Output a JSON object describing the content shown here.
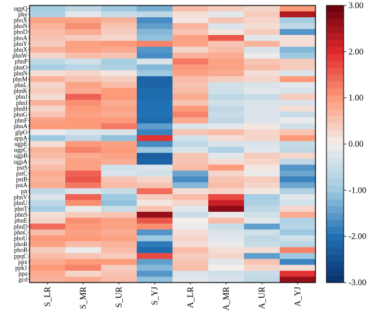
{
  "chart_data": {
    "type": "heatmap",
    "title": "",
    "xlabel": "",
    "ylabel": "",
    "columns": [
      "S_LR",
      "S_MR",
      "S_UR",
      "S_YJ",
      "A_LR",
      "A_MR",
      "A_UR",
      "A_YJ"
    ],
    "rows": [
      "ugpQ",
      "phy",
      "phoX",
      "phoN",
      "phoD",
      "phoA",
      "phnY",
      "phnX",
      "phnW",
      "phnP",
      "phnO",
      "phnN",
      "phnM",
      "phnL",
      "phnK",
      "phnJ",
      "phnI",
      "phnH",
      "phnG",
      "phnF",
      "phnA",
      "glpO",
      "appA",
      "ugpE",
      "ugpC",
      "ugpB",
      "ugpA",
      "pstS",
      "pstC",
      "pstB",
      "pstA",
      "pit",
      "phnV",
      "phnU",
      "phnT",
      "phnS",
      "phnE",
      "phnD",
      "phnC",
      "phoU",
      "phoR",
      "phoB",
      "ppqC",
      "ppx",
      "ppk1",
      "ppa",
      "gcd"
    ],
    "values": [
      [
        -0.9,
        -0.6,
        -1.0,
        -1.3,
        0.6,
        0.4,
        0.3,
        1.0
      ],
      [
        -0.8,
        -0.2,
        -0.5,
        -0.6,
        0.2,
        -0.2,
        0.4,
        2.4
      ],
      [
        0.9,
        0.9,
        0.7,
        -1.7,
        0.1,
        0.5,
        0.3,
        -0.9
      ],
      [
        0.7,
        1.1,
        0.5,
        -1.5,
        0.7,
        -0.3,
        0.2,
        -0.6
      ],
      [
        0.6,
        0.8,
        0.4,
        -1.2,
        0.5,
        0.1,
        0.4,
        -1.6
      ],
      [
        0.5,
        0.4,
        0.3,
        -1.1,
        0.9,
        1.6,
        -0.2,
        0.2
      ],
      [
        0.4,
        0.9,
        1.0,
        1.2,
        0.9,
        0.5,
        0.7,
        0.2
      ],
      [
        0.7,
        0.9,
        0.8,
        -1.6,
        0.3,
        0.6,
        -0.3,
        -1.2
      ],
      [
        0.3,
        0.6,
        0.5,
        -1.7,
        0.7,
        0.8,
        -0.1,
        -1.0
      ],
      [
        -0.6,
        -0.4,
        -0.9,
        -0.3,
        1.3,
        0.9,
        0.5,
        0.4
      ],
      [
        -0.9,
        -0.7,
        -0.8,
        -1.2,
        1.0,
        0.9,
        0.6,
        0.4
      ],
      [
        0.2,
        0.3,
        0.1,
        -1.0,
        0.9,
        0.8,
        0.2,
        -0.3
      ],
      [
        0.7,
        0.5,
        0.4,
        -2.2,
        0.6,
        0.4,
        0.3,
        1.0
      ],
      [
        0.3,
        0.9,
        0.6,
        -2.2,
        0.5,
        -0.4,
        -0.3,
        -0.2
      ],
      [
        0.4,
        0.8,
        1.0,
        -2.1,
        0.6,
        -0.4,
        -0.2,
        -0.3
      ],
      [
        0.2,
        1.5,
        1.0,
        -2.1,
        0.8,
        -0.6,
        -0.5,
        0.4
      ],
      [
        0.7,
        1.1,
        0.8,
        -2.0,
        0.5,
        -0.4,
        -0.3,
        -0.3
      ],
      [
        0.3,
        1.0,
        0.9,
        -2.0,
        1.0,
        -0.6,
        -0.3,
        0.2
      ],
      [
        0.5,
        0.9,
        0.8,
        -2.0,
        1.2,
        -0.5,
        -0.3,
        -0.5
      ],
      [
        0.9,
        1.0,
        1.0,
        -2.1,
        0.8,
        -0.6,
        -0.3,
        -0.1
      ],
      [
        1.0,
        1.0,
        1.3,
        -1.5,
        -0.3,
        -0.2,
        0.1,
        -0.4
      ],
      [
        -0.1,
        -0.3,
        -0.3,
        -1.8,
        0.5,
        0.6,
        0.3,
        0.5
      ],
      [
        -1.0,
        -0.6,
        -1.1,
        1.9,
        -0.4,
        0.2,
        0.3,
        1.0
      ],
      [
        0.2,
        1.0,
        0.9,
        -1.7,
        -0.6,
        -0.3,
        -0.3,
        -0.5
      ],
      [
        0.7,
        1.2,
        1.0,
        -1.0,
        -0.3,
        -0.8,
        -0.2,
        -0.6
      ],
      [
        0.6,
        0.8,
        0.9,
        -2.3,
        0.5,
        -0.2,
        0.4,
        0.3
      ],
      [
        0.4,
        0.9,
        0.8,
        -2.2,
        0.5,
        0.2,
        0.3,
        -0.6
      ],
      [
        0.6,
        0.9,
        -0.4,
        -0.3,
        0.6,
        1.0,
        0.1,
        -1.6
      ],
      [
        0.8,
        1.5,
        -0.3,
        -0.4,
        -1.4,
        0.3,
        -0.1,
        -1.4
      ],
      [
        0.7,
        1.6,
        0.5,
        0.3,
        -1.7,
        0.5,
        0.4,
        -1.8
      ],
      [
        0.8,
        1.3,
        0.6,
        0.5,
        -1.2,
        0.6,
        0.3,
        -1.4
      ],
      [
        -0.6,
        -0.3,
        -0.5,
        1.4,
        0.2,
        0.3,
        0.1,
        -0.8
      ],
      [
        -0.3,
        1.5,
        -1.0,
        0.4,
        0.6,
        1.7,
        -0.9,
        -0.2
      ],
      [
        -0.6,
        1.1,
        -1.1,
        0.1,
        0.3,
        2.2,
        -0.8,
        -0.4
      ],
      [
        -0.9,
        -0.1,
        -0.5,
        0.5,
        -0.2,
        2.7,
        -0.6,
        0.3
      ],
      [
        0.2,
        0.4,
        0.5,
        2.6,
        -0.5,
        -0.1,
        -0.4,
        0.8
      ],
      [
        0.3,
        1.1,
        0.9,
        1.6,
        0.0,
        0.6,
        -0.2,
        -0.8
      ],
      [
        1.4,
        1.0,
        0.9,
        1.1,
        -0.1,
        -0.5,
        -1.5,
        -0.7
      ],
      [
        0.6,
        0.9,
        0.8,
        -1.6,
        0.2,
        -0.3,
        -0.4,
        -1.0
      ],
      [
        1.0,
        1.0,
        0.9,
        -1.0,
        0.3,
        -0.2,
        -0.6,
        -0.4
      ],
      [
        0.9,
        0.6,
        0.7,
        -1.9,
        0.2,
        -0.1,
        -0.5,
        -0.7
      ],
      [
        0.4,
        -0.1,
        0.6,
        -2.1,
        0.6,
        0.2,
        0.2,
        1.2
      ],
      [
        0.6,
        0.5,
        0.4,
        1.7,
        0.4,
        0.3,
        -1.5,
        -1.0
      ],
      [
        0.8,
        1.0,
        1.0,
        -1.5,
        0.5,
        -0.2,
        0.5,
        -1.8
      ],
      [
        1.0,
        1.2,
        0.4,
        -1.2,
        0.6,
        0.0,
        0.3,
        0.2
      ],
      [
        0.8,
        0.3,
        0.5,
        -1.6,
        -0.3,
        -0.4,
        -0.5,
        1.9
      ],
      [
        0.7,
        0.8,
        0.6,
        -1.1,
        -0.2,
        -0.3,
        -0.6,
        2.6
      ]
    ],
    "vmin": -3.0,
    "vmax": 3.0,
    "colorbar_ticks": [
      "3.00",
      "2.00",
      "1.00",
      "0.00",
      "-1.00",
      "-2.00",
      "-3.00"
    ],
    "colorbar_tick_values": [
      3,
      2,
      1,
      0,
      -1,
      -2,
      -3
    ],
    "colorscale": [
      {
        "v": -3.0,
        "c": "#08306b"
      },
      {
        "v": -2.0,
        "c": "#2171b5"
      },
      {
        "v": -1.0,
        "c": "#9ecae1"
      },
      {
        "v": 0.0,
        "c": "#f2eeec"
      },
      {
        "v": 1.0,
        "c": "#fc9a7a"
      },
      {
        "v": 2.0,
        "c": "#e0282c"
      },
      {
        "v": 3.0,
        "c": "#67000d"
      }
    ]
  }
}
